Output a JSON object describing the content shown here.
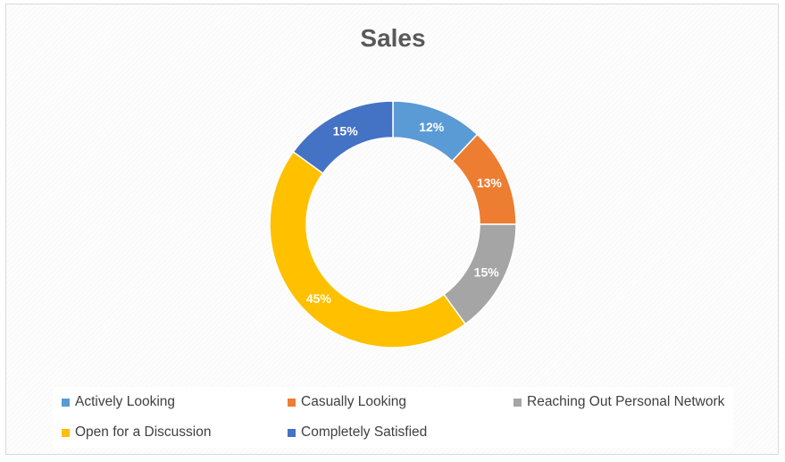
{
  "chart_data": {
    "type": "pie",
    "variant": "donut",
    "title": "Sales",
    "legend_position": "bottom",
    "slices": [
      {
        "label": "Actively Looking",
        "value": 12,
        "display": "12%",
        "color": "#5b9bd5"
      },
      {
        "label": "Casually Looking",
        "value": 13,
        "display": "13%",
        "color": "#ed7d31"
      },
      {
        "label": "Reaching Out Personal Network",
        "value": 15,
        "display": "15%",
        "color": "#a5a5a5"
      },
      {
        "label": "Open for a Discussion",
        "value": 45,
        "display": "45%",
        "color": "#ffc000"
      },
      {
        "label": "Completely Satisfied",
        "value": 15,
        "display": "15%",
        "color": "#4472c4"
      }
    ]
  }
}
